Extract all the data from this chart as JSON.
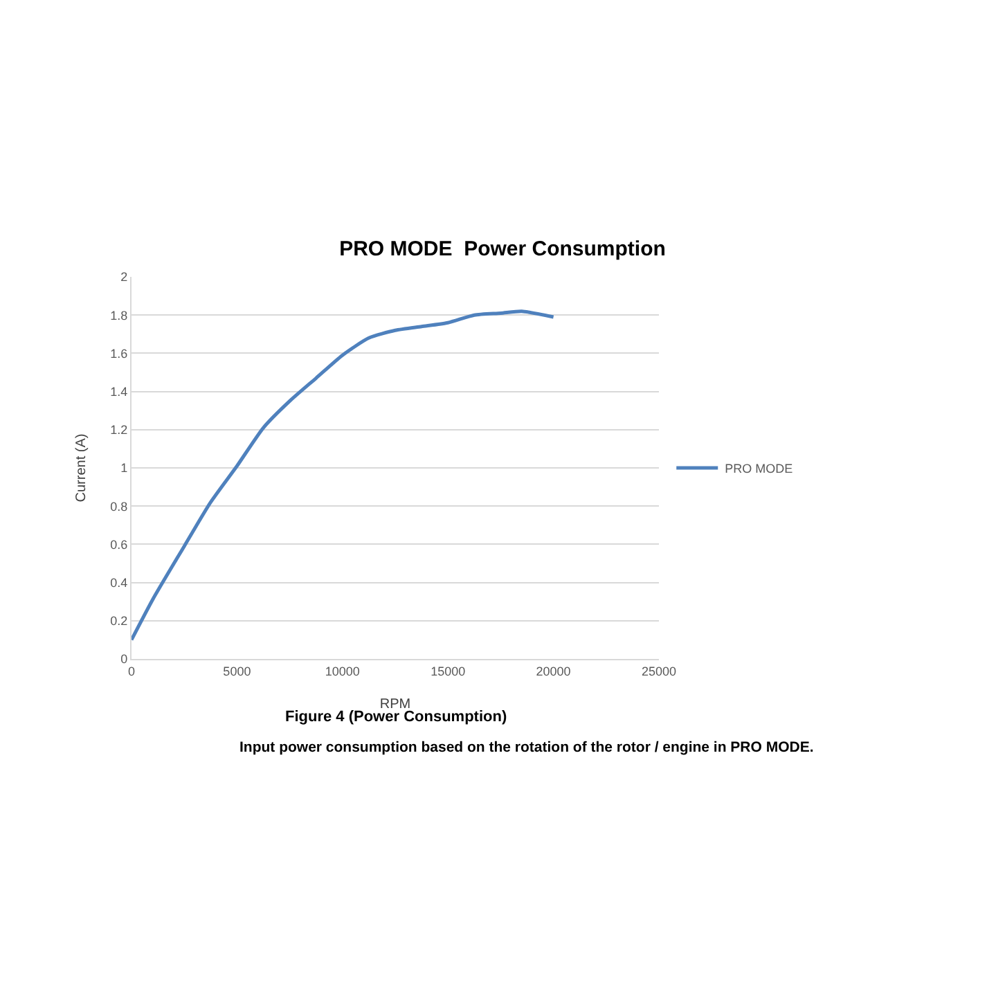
{
  "chart_data": {
    "type": "line",
    "title": "PRO MODE  Power Consumption",
    "xlabel": "RPM",
    "ylabel": "Current (A)",
    "x": [
      0,
      1000,
      2500,
      3750,
      5000,
      6250,
      7500,
      8750,
      10000,
      11250,
      12500,
      13750,
      15000,
      16250,
      17500,
      18500,
      20000
    ],
    "series": [
      {
        "name": "PRO MODE",
        "color": "#4f81bd",
        "values": [
          0.1,
          0.31,
          0.59,
          0.82,
          1.01,
          1.21,
          1.35,
          1.47,
          1.59,
          1.68,
          1.72,
          1.74,
          1.76,
          1.8,
          1.81,
          1.82,
          1.79
        ]
      }
    ],
    "xlim": [
      0,
      25000
    ],
    "xticks": [
      0,
      5000,
      10000,
      15000,
      20000,
      25000
    ],
    "ylim": [
      0,
      2
    ],
    "yticks": [
      0,
      0.2,
      0.4,
      0.6,
      0.8,
      1,
      1.2,
      1.4,
      1.6,
      1.8,
      2
    ],
    "grid": "y",
    "legend": "right",
    "marker": "none",
    "line_style": "solid",
    "annotations": [
      "Figure 4 (Power Consumption)",
      "Input power consumption based on the rotation of the rotor / engine in PRO MODE."
    ]
  }
}
